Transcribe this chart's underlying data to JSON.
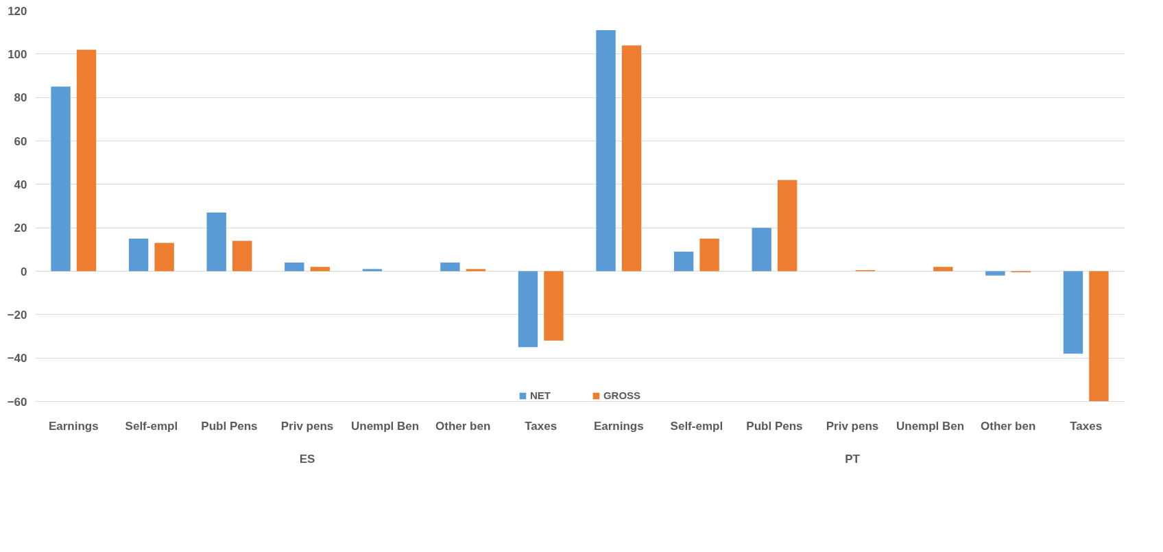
{
  "chart_data": {
    "type": "bar",
    "categories": [
      "Earnings",
      "Self-empl",
      "Publ Pens",
      "Priv pens",
      "Unempl Ben",
      "Other ben",
      "Taxes",
      "Earnings",
      "Self-empl",
      "Publ Pens",
      "Priv pens",
      "Unempl Ben",
      "Other ben",
      "Taxes"
    ],
    "annotations": [
      "ES",
      "PT"
    ],
    "series": [
      {
        "name": "NET",
        "color": "#5b9bd5",
        "values": [
          85,
          15,
          27,
          4,
          1,
          4,
          -35,
          111,
          9,
          20,
          0,
          0,
          -2,
          -38
        ]
      },
      {
        "name": "GROSS",
        "color": "#ed7d31",
        "values": [
          102,
          13,
          14,
          2,
          0,
          1,
          -32,
          104,
          15,
          42,
          0.5,
          2,
          -0.5,
          -60
        ]
      }
    ],
    "ylim": [
      -60,
      120
    ],
    "yticks": [
      -60,
      -40,
      -20,
      0,
      20,
      40,
      60,
      80,
      100,
      120
    ],
    "grid": "y",
    "legend": "bottom"
  }
}
